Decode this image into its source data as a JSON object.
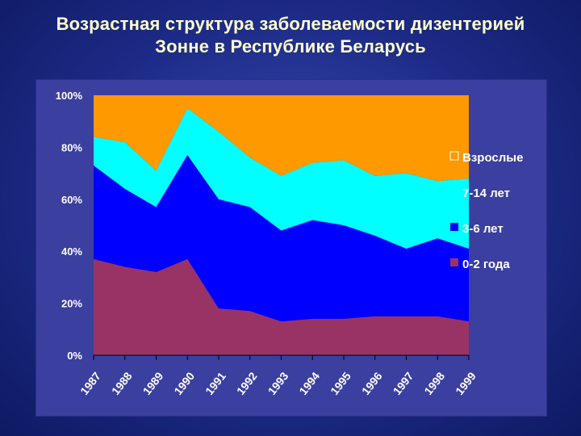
{
  "title": {
    "line1": "Возрастная структура заболеваемости дизентерией",
    "line2": "Зонне в Республике Беларусь"
  },
  "colors": {
    "adults": "#ff9900",
    "age_7_14": "#00ffff",
    "age_3_6": "#0000ff",
    "age_0_2": "#993366",
    "axis_text": "#ffffff",
    "title_text": "#ffffcc"
  },
  "chart_data": {
    "type": "area",
    "stacked": true,
    "normalized_percent": true,
    "categories": [
      "1987",
      "1988",
      "1989",
      "1990",
      "1991",
      "1992",
      "1993",
      "1994",
      "1995",
      "1996",
      "1997",
      "1998",
      "1999"
    ],
    "y_ticks": [
      "0%",
      "20%",
      "40%",
      "60%",
      "80%",
      "100%"
    ],
    "ylim": [
      0,
      100
    ],
    "legend_position": "right",
    "series": [
      {
        "name": "0-2 года",
        "color_key": "age_0_2",
        "values": [
          37,
          34,
          32,
          37,
          18,
          17,
          13,
          14,
          14,
          15,
          15,
          15,
          13
        ]
      },
      {
        "name": "3-6 лет",
        "color_key": "age_3_6",
        "values": [
          36,
          30,
          25,
          40,
          42,
          40,
          35,
          38,
          36,
          31,
          26,
          30,
          28
        ]
      },
      {
        "name": "7-14 лет",
        "color_key": "age_7_14",
        "values": [
          11,
          18,
          14,
          18,
          26,
          19,
          21,
          22,
          25,
          23,
          29,
          22,
          27
        ]
      },
      {
        "name": "Взрослые",
        "color_key": "adults",
        "values": [
          16,
          18,
          29,
          5,
          14,
          24,
          31,
          26,
          25,
          31,
          30,
          33,
          32
        ]
      }
    ],
    "legend_order": [
      "Взрослые",
      "7-14 лет",
      "3-6 лет",
      "0-2 года"
    ]
  }
}
